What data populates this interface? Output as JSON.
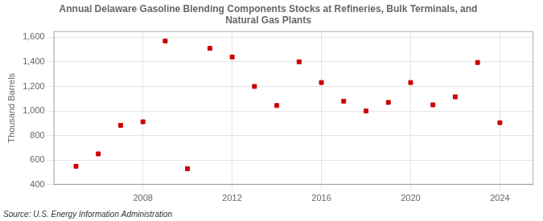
{
  "chart_data": {
    "type": "scatter",
    "title": "Annual Delaware Gasoline Blending Components Stocks at Refineries, Bulk Terminals, and\nNatural Gas Plants",
    "ylabel": "Thousand Barrels",
    "annotations": [
      "Source: U.S. Energy Information Administration"
    ],
    "x": [
      2005,
      2006,
      2007,
      2008,
      2009,
      2010,
      2011,
      2012,
      2013,
      2014,
      2015,
      2016,
      2017,
      2018,
      2019,
      2020,
      2021,
      2022,
      2023,
      2024
    ],
    "values": [
      550,
      651,
      883,
      912,
      1570,
      530,
      1510,
      1440,
      1200,
      1045,
      1400,
      1232,
      1080,
      1000,
      1070,
      1232,
      1050,
      1115,
      1395,
      905
    ],
    "color": "#cc0000",
    "marker": "square",
    "ylim": [
      400,
      1650
    ],
    "yticks": [
      400,
      600,
      800,
      {
        "value": 1000,
        "label": "1,000"
      },
      {
        "value": 1200,
        "label": "1,200"
      },
      {
        "value": 1400,
        "label": "1,400"
      },
      {
        "value": 1600,
        "label": "1,600"
      }
    ],
    "xlim": [
      2004.0,
      2025.5
    ],
    "xticks": [
      2008,
      2012,
      2016,
      2020,
      2024
    ],
    "grid": true
  }
}
